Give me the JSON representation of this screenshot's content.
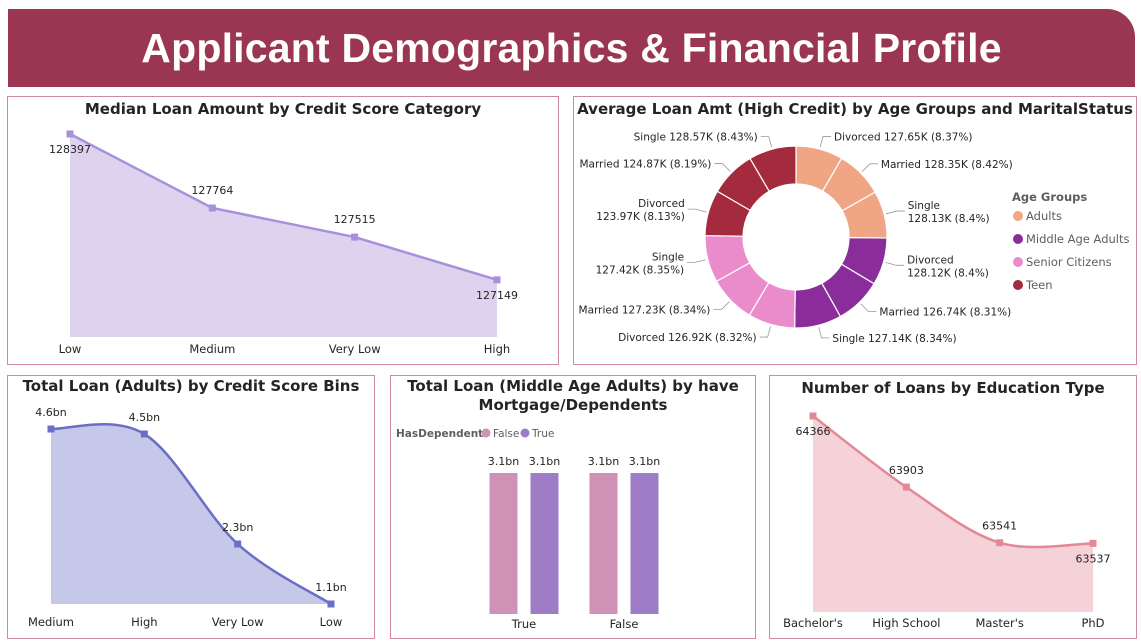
{
  "header": {
    "title": "Applicant Demographics & Financial Profile"
  },
  "colors": {
    "banner": "#9b3652",
    "panel_border": "#cf8a9c",
    "lavender_line": "#a98fdc",
    "lavender_fill": "#ddd3ef",
    "blue_line": "#6a6fc5",
    "blue_fill": "#c6c8e9",
    "pink_line": "#e38895",
    "pink_fill": "#f5d2d7",
    "bar_false": "#cf92b4",
    "bar_true": "#9e7cc6"
  },
  "charts": {
    "median_loan": {
      "title": "Median Loan Amount by Credit Score Category",
      "chart_data": {
        "type": "area",
        "title": "Median Loan Amount by Credit Score Category",
        "categories": [
          "Low",
          "Medium",
          "Very Low",
          "High"
        ],
        "values": [
          128397,
          127764,
          127515,
          127149
        ],
        "labels": [
          "128397",
          "127764",
          "127515",
          "127149"
        ],
        "ylim": [
          126660,
          128397
        ]
      }
    },
    "avg_loan_donut": {
      "title": "Average Loan Amt (High Credit) by Age Groups and MaritalStatus",
      "legend_title": "Age Groups",
      "chart_data": {
        "type": "pie",
        "title": "Average Loan Amt (High Credit) by Age Groups and MaritalStatus",
        "legend": [
          {
            "name": "Adults",
            "color": "#f0a584"
          },
          {
            "name": "Middle Age Adults",
            "color": "#8a2d9a"
          },
          {
            "name": "Senior Citizens",
            "color": "#ea8ccc"
          },
          {
            "name": "Teen",
            "color": "#a42a3d"
          }
        ],
        "slices": [
          {
            "group": "Adults",
            "label": "Divorced 127.65K (8.37%)",
            "value": 8.37
          },
          {
            "group": "Adults",
            "label": "Married 128.35K (8.42%)",
            "value": 8.42
          },
          {
            "group": "Adults",
            "label": "Single 128.13K (8.4%)",
            "value": 8.4
          },
          {
            "group": "Middle Age Adults",
            "label": "Divorced 128.12K (8.4%)",
            "value": 8.4
          },
          {
            "group": "Middle Age Adults",
            "label": "Married 126.74K (8.31%)",
            "value": 8.31
          },
          {
            "group": "Middle Age Adults",
            "label": "Single 127.14K (8.34%)",
            "value": 8.34
          },
          {
            "group": "Senior Citizens",
            "label": "Divorced 126.92K (8.32%)",
            "value": 8.32
          },
          {
            "group": "Senior Citizens",
            "label": "Married 127.23K (8.34%)",
            "value": 8.34
          },
          {
            "group": "Senior Citizens",
            "label": "Single 127.42K (8.35%)",
            "value": 8.35
          },
          {
            "group": "Teen",
            "label": "Divorced 123.97K (8.13%)",
            "value": 8.13
          },
          {
            "group": "Teen",
            "label": "Married 124.87K (8.19%)",
            "value": 8.19
          },
          {
            "group": "Teen",
            "label": "Single 128.57K (8.43%)",
            "value": 8.43
          }
        ]
      }
    },
    "total_loan_adults": {
      "title": "Total Loan (Adults) by Credit Score Bins",
      "chart_data": {
        "type": "area",
        "title": "Total Loan (Adults) by Credit Score Bins",
        "categories": [
          "Medium",
          "High",
          "Very Low",
          "Low"
        ],
        "values": [
          4.6,
          4.5,
          2.3,
          1.1
        ],
        "labels": [
          "4.6bn",
          "4.5bn",
          "2.3bn",
          "1.1bn"
        ],
        "unit": "bn",
        "ylim": [
          1.1,
          4.6
        ]
      }
    },
    "total_loan_middle": {
      "title_line1": "Total Loan (Middle Age Adults) by have",
      "title_line2": "Mortgage/Dependents",
      "legend_title": "HasDependents",
      "chart_data": {
        "type": "bar",
        "title": "Total Loan (Middle Age Adults) by have Mortgage/Dependents",
        "categories": [
          "True",
          "False"
        ],
        "series": [
          {
            "name": "False",
            "values": [
              3.1,
              3.1
            ],
            "labels": [
              "3.1bn",
              "3.1bn"
            ]
          },
          {
            "name": "True",
            "values": [
              3.1,
              3.1
            ],
            "labels": [
              "3.1bn",
              "3.1bn"
            ]
          }
        ],
        "unit": "bn"
      }
    },
    "loans_education": {
      "title": "Number of Loans by Education Type",
      "chart_data": {
        "type": "area",
        "title": "Number of Loans by Education Type",
        "categories": [
          "Bachelor's",
          "High School",
          "Master's",
          "PhD"
        ],
        "values": [
          64366,
          63903,
          63541,
          63537
        ],
        "labels": [
          "64366",
          "63903",
          "63541",
          "63537"
        ],
        "ylim": [
          63090,
          64366
        ]
      }
    }
  }
}
